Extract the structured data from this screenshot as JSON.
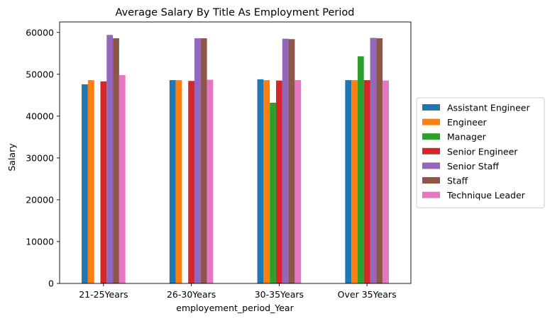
{
  "chart_data": {
    "type": "bar",
    "title": "Average Salary By Title As Employment Period",
    "xlabel": "employement_period_Year",
    "ylabel": "Salary",
    "categories": [
      "21-25Years",
      "26-30Years",
      "30-35Years",
      "Over 35Years"
    ],
    "ylim": [
      0,
      62500
    ],
    "yticks": [
      0,
      10000,
      20000,
      30000,
      40000,
      50000,
      60000
    ],
    "grid": false,
    "legend_position": "right",
    "series": [
      {
        "name": "Assistant Engineer",
        "color": "#1f77b4",
        "values": [
          47600,
          48600,
          48800,
          48600
        ]
      },
      {
        "name": "Engineer",
        "color": "#ff7f0e",
        "values": [
          48600,
          48600,
          48600,
          48600
        ]
      },
      {
        "name": "Manager",
        "color": "#2ca02c",
        "values": [
          null,
          null,
          43200,
          54300
        ]
      },
      {
        "name": "Senior Engineer",
        "color": "#d62728",
        "values": [
          48300,
          48400,
          48500,
          48600
        ]
      },
      {
        "name": "Senior Staff",
        "color": "#9467bd",
        "values": [
          59400,
          58600,
          58500,
          58700
        ]
      },
      {
        "name": "Staff",
        "color": "#8c564b",
        "values": [
          58600,
          58600,
          58400,
          58600
        ]
      },
      {
        "name": "Technique Leader",
        "color": "#e377c2",
        "values": [
          49800,
          48700,
          48600,
          48500
        ]
      }
    ]
  }
}
